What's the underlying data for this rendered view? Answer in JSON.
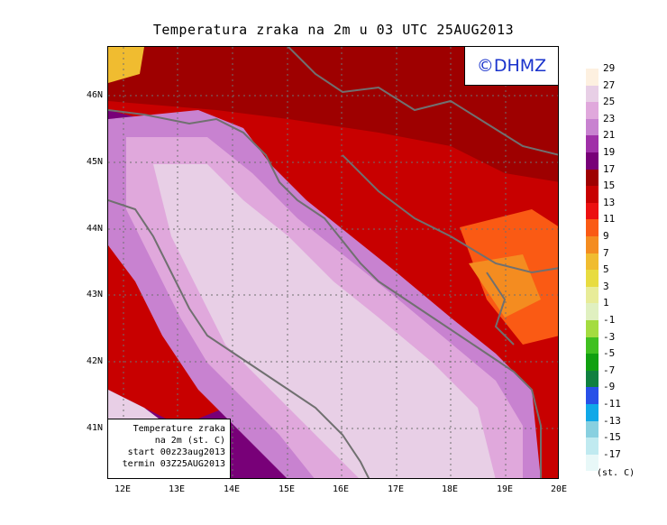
{
  "title": "Temperatura zraka na 2m u 03 UTC 25AUG2013",
  "copyright": "©DHMZ",
  "info_box": {
    "line1": "Temperature zraka",
    "line2": "na 2m (st. C)",
    "line3": "start 00z23aug2013",
    "line4": "termin 03Z25AUG2013"
  },
  "lat_labels": [
    "46N",
    "45N",
    "44N",
    "43N",
    "42N",
    "41N"
  ],
  "lon_labels": [
    "12E",
    "13E",
    "14E",
    "15E",
    "16E",
    "17E",
    "18E",
    "19E",
    "20E"
  ],
  "legend": {
    "unit": "(st. C)",
    "labels": [
      "29",
      "27",
      "25",
      "23",
      "21",
      "19",
      "17",
      "15",
      "13",
      "11",
      "9",
      "7",
      "5",
      "3",
      "1",
      "-1",
      "-3",
      "-5",
      "-7",
      "-9",
      "-11",
      "-13",
      "-15",
      "-17"
    ],
    "colors": [
      "#fdf0e0",
      "#e8cfe6",
      "#e0a8dc",
      "#c882d0",
      "#a030a8",
      "#780078",
      "#9e0000",
      "#c80000",
      "#ec1010",
      "#fa5a14",
      "#f48c20",
      "#f0bc30",
      "#e8dc40",
      "#e8ec98",
      "#e0f0c0",
      "#a4dc40",
      "#40c020",
      "#10a010",
      "#108040",
      "#2850e8",
      "#10a8e8",
      "#88d0e0",
      "#c0eaf0",
      "#e8f8f8"
    ]
  }
}
